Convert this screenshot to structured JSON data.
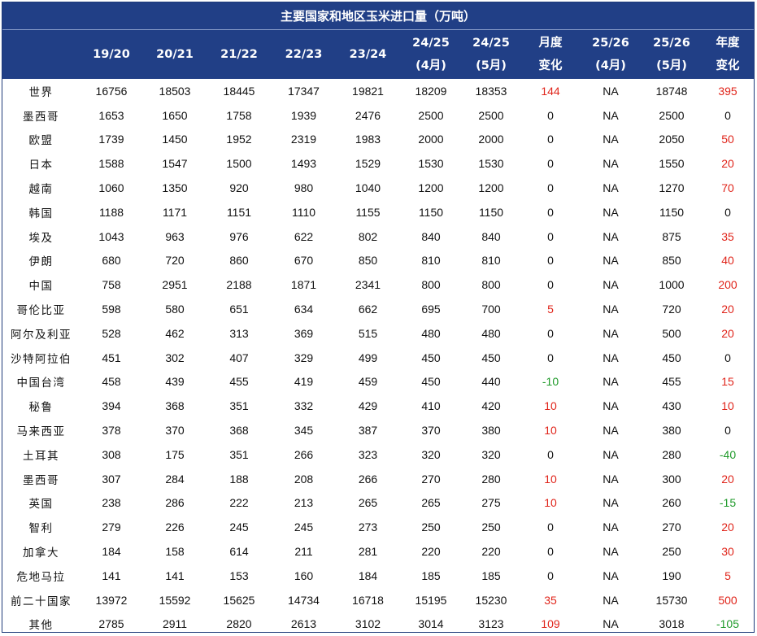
{
  "title": "主要国家和地区玉米进口量（万吨）",
  "headers": [
    {
      "l1": "",
      "l2": ""
    },
    {
      "l1": "19/20",
      "l2": ""
    },
    {
      "l1": "20/21",
      "l2": ""
    },
    {
      "l1": "21/22",
      "l2": ""
    },
    {
      "l1": "22/23",
      "l2": ""
    },
    {
      "l1": "23/24",
      "l2": ""
    },
    {
      "l1": "24/25",
      "l2": "(4月)"
    },
    {
      "l1": "24/25",
      "l2": "(5月)"
    },
    {
      "l1": "月度",
      "l2": "变化"
    },
    {
      "l1": "25/26",
      "l2": "(4月)"
    },
    {
      "l1": "25/26",
      "l2": "(5月)"
    },
    {
      "l1": "年度",
      "l2": "变化"
    }
  ],
  "rows": [
    {
      "name": "世界",
      "v": [
        "16756",
        "18503",
        "18445",
        "17347",
        "19821",
        "18209",
        "18353",
        "144",
        "NA",
        "18748",
        "395"
      ],
      "m": "red",
      "y": "red"
    },
    {
      "name": "墨西哥",
      "v": [
        "1653",
        "1650",
        "1758",
        "1939",
        "2476",
        "2500",
        "2500",
        "0",
        "NA",
        "2500",
        "0"
      ],
      "m": "",
      "y": ""
    },
    {
      "name": "欧盟",
      "v": [
        "1739",
        "1450",
        "1952",
        "2319",
        "1983",
        "2000",
        "2000",
        "0",
        "NA",
        "2050",
        "50"
      ],
      "m": "",
      "y": "red"
    },
    {
      "name": "日本",
      "v": [
        "1588",
        "1547",
        "1500",
        "1493",
        "1529",
        "1530",
        "1530",
        "0",
        "NA",
        "1550",
        "20"
      ],
      "m": "",
      "y": "red"
    },
    {
      "name": "越南",
      "v": [
        "1060",
        "1350",
        "920",
        "980",
        "1040",
        "1200",
        "1200",
        "0",
        "NA",
        "1270",
        "70"
      ],
      "m": "",
      "y": "red"
    },
    {
      "name": "韩国",
      "v": [
        "1188",
        "1171",
        "1151",
        "1110",
        "1155",
        "1150",
        "1150",
        "0",
        "NA",
        "1150",
        "0"
      ],
      "m": "",
      "y": ""
    },
    {
      "name": "埃及",
      "v": [
        "1043",
        "963",
        "976",
        "622",
        "802",
        "840",
        "840",
        "0",
        "NA",
        "875",
        "35"
      ],
      "m": "",
      "y": "red"
    },
    {
      "name": "伊朗",
      "v": [
        "680",
        "720",
        "860",
        "670",
        "850",
        "810",
        "810",
        "0",
        "NA",
        "850",
        "40"
      ],
      "m": "",
      "y": "red"
    },
    {
      "name": "中国",
      "v": [
        "758",
        "2951",
        "2188",
        "1871",
        "2341",
        "800",
        "800",
        "0",
        "NA",
        "1000",
        "200"
      ],
      "m": "",
      "y": "red"
    },
    {
      "name": "哥伦比亚",
      "v": [
        "598",
        "580",
        "651",
        "634",
        "662",
        "695",
        "700",
        "5",
        "NA",
        "720",
        "20"
      ],
      "m": "red",
      "y": "red"
    },
    {
      "name": "阿尔及利亚",
      "v": [
        "528",
        "462",
        "313",
        "369",
        "515",
        "480",
        "480",
        "0",
        "NA",
        "500",
        "20"
      ],
      "m": "",
      "y": "red"
    },
    {
      "name": "沙特阿拉伯",
      "v": [
        "451",
        "302",
        "407",
        "329",
        "499",
        "450",
        "450",
        "0",
        "NA",
        "450",
        "0"
      ],
      "m": "",
      "y": ""
    },
    {
      "name": "中国台湾",
      "v": [
        "458",
        "439",
        "455",
        "419",
        "459",
        "450",
        "440",
        "-10",
        "NA",
        "455",
        "15"
      ],
      "m": "green",
      "y": "red"
    },
    {
      "name": "秘鲁",
      "v": [
        "394",
        "368",
        "351",
        "332",
        "429",
        "410",
        "420",
        "10",
        "NA",
        "430",
        "10"
      ],
      "m": "red",
      "y": "red"
    },
    {
      "name": "马来西亚",
      "v": [
        "378",
        "370",
        "368",
        "345",
        "387",
        "370",
        "380",
        "10",
        "NA",
        "380",
        "0"
      ],
      "m": "red",
      "y": ""
    },
    {
      "name": "土耳其",
      "v": [
        "308",
        "175",
        "351",
        "266",
        "323",
        "320",
        "320",
        "0",
        "NA",
        "280",
        "-40"
      ],
      "m": "",
      "y": "green"
    },
    {
      "name": "墨西哥",
      "v": [
        "307",
        "284",
        "188",
        "208",
        "266",
        "270",
        "280",
        "10",
        "NA",
        "300",
        "20"
      ],
      "m": "red",
      "y": "red"
    },
    {
      "name": "英国",
      "v": [
        "238",
        "286",
        "222",
        "213",
        "265",
        "265",
        "275",
        "10",
        "NA",
        "260",
        "-15"
      ],
      "m": "red",
      "y": "green"
    },
    {
      "name": "智利",
      "v": [
        "279",
        "226",
        "245",
        "245",
        "273",
        "250",
        "250",
        "0",
        "NA",
        "270",
        "20"
      ],
      "m": "",
      "y": "red"
    },
    {
      "name": "加拿大",
      "v": [
        "184",
        "158",
        "614",
        "211",
        "281",
        "220",
        "220",
        "0",
        "NA",
        "250",
        "30"
      ],
      "m": "",
      "y": "red"
    },
    {
      "name": "危地马拉",
      "v": [
        "141",
        "141",
        "153",
        "160",
        "184",
        "185",
        "185",
        "0",
        "NA",
        "190",
        "5"
      ],
      "m": "",
      "y": "red"
    },
    {
      "name": "前二十国家",
      "v": [
        "13972",
        "15592",
        "15625",
        "14734",
        "16718",
        "15195",
        "15230",
        "35",
        "NA",
        "15730",
        "500"
      ],
      "m": "red",
      "y": "red"
    },
    {
      "name": "其他",
      "v": [
        "2785",
        "2911",
        "2820",
        "2613",
        "3102",
        "3014",
        "3123",
        "109",
        "NA",
        "3018",
        "-105"
      ],
      "m": "red",
      "y": "green"
    }
  ],
  "colors": {
    "header_bg": "#213f86",
    "positive": "#e0251b",
    "negative": "#1f9a2a"
  }
}
